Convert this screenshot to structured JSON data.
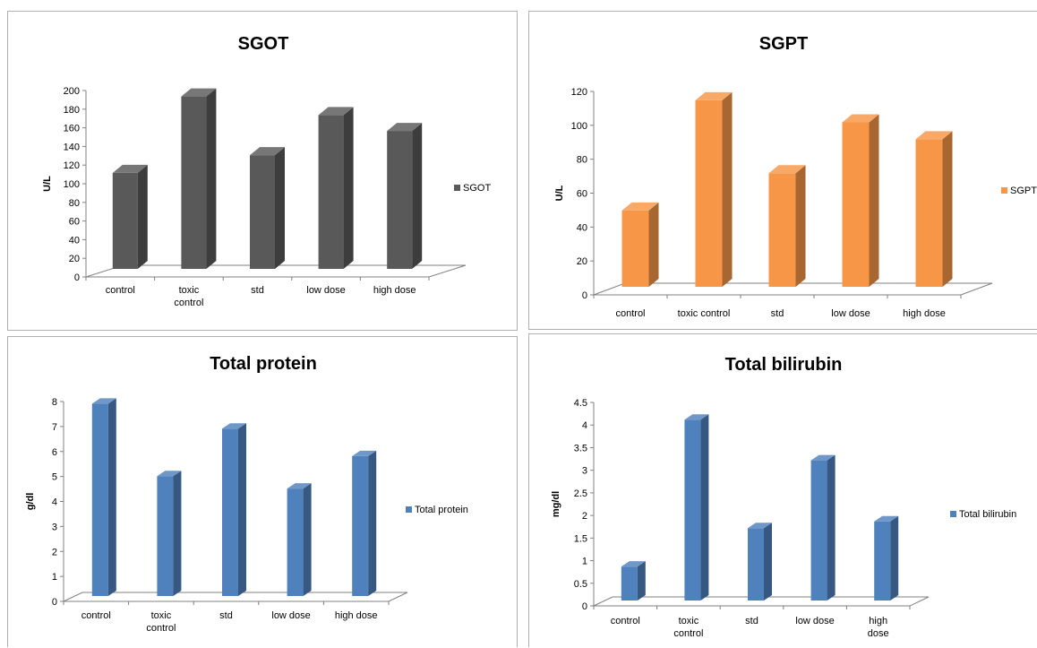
{
  "chart_data": [
    {
      "type": "bar",
      "title": "SGOT",
      "ylabel": "U/L",
      "xlabel": "",
      "categories": [
        "control",
        "toxic control",
        "std",
        "low dose",
        "high dose"
      ],
      "category_lines": [
        [
          "control"
        ],
        [
          "toxic",
          "control"
        ],
        [
          "std"
        ],
        [
          "low dose"
        ],
        [
          "high dose"
        ]
      ],
      "series": [
        {
          "name": "SGOT",
          "values": [
            103,
            185,
            122,
            165,
            148
          ]
        }
      ],
      "ylim": [
        0,
        200
      ],
      "yticks": [
        0,
        20,
        40,
        60,
        80,
        100,
        120,
        140,
        160,
        180,
        200
      ],
      "color": "#595959",
      "legend_position": "right",
      "three_d": true
    },
    {
      "type": "bar",
      "title": "SGPT",
      "ylabel": "U/L",
      "xlabel": "",
      "categories": [
        "control",
        "toxic control",
        "std",
        "low dose",
        "high dose"
      ],
      "category_lines": [
        [
          "control"
        ],
        [
          "toxic control"
        ],
        [
          "std"
        ],
        [
          "low dose"
        ],
        [
          "high dose"
        ]
      ],
      "series": [
        {
          "name": "SGPT",
          "values": [
            45,
            110,
            67,
            97,
            87
          ]
        }
      ],
      "ylim": [
        0,
        120
      ],
      "yticks": [
        0,
        20,
        40,
        60,
        80,
        100,
        120
      ],
      "color": "#f79646",
      "legend_position": "right",
      "three_d": true
    },
    {
      "type": "bar",
      "title": "Total  protein",
      "ylabel": "g/dl",
      "xlabel": "",
      "categories": [
        "control",
        "toxic control",
        "std",
        "low dose",
        "high dose"
      ],
      "category_lines": [
        [
          "control"
        ],
        [
          "toxic",
          "control"
        ],
        [
          "std"
        ],
        [
          "low dose"
        ],
        [
          "high dose"
        ]
      ],
      "series": [
        {
          "name": "Total protein",
          "values": [
            7.7,
            4.8,
            6.7,
            4.3,
            5.6
          ]
        }
      ],
      "ylim": [
        0,
        8
      ],
      "yticks": [
        0,
        1,
        2,
        3,
        4,
        5,
        6,
        7,
        8
      ],
      "color": "#4f81bd",
      "legend_position": "right",
      "three_d": true
    },
    {
      "type": "bar",
      "title": "Total bilirubin",
      "ylabel": "mg/dl",
      "xlabel": "",
      "categories": [
        "control",
        "toxic control",
        "std",
        "low dose",
        "high dose"
      ],
      "category_lines": [
        [
          "control"
        ],
        [
          "toxic",
          "control"
        ],
        [
          "std"
        ],
        [
          "low dose"
        ],
        [
          "high",
          "dose"
        ]
      ],
      "series": [
        {
          "name": "Total bilirubin",
          "values": [
            0.75,
            4.0,
            1.6,
            3.1,
            1.75
          ]
        }
      ],
      "ylim": [
        0,
        4.5
      ],
      "yticks": [
        "0",
        "0.5",
        "1",
        "1.5",
        "2",
        "2.5",
        "3",
        "3.5",
        "4",
        "4.5"
      ],
      "color": "#4f81bd",
      "legend_position": "right",
      "three_d": true
    }
  ]
}
